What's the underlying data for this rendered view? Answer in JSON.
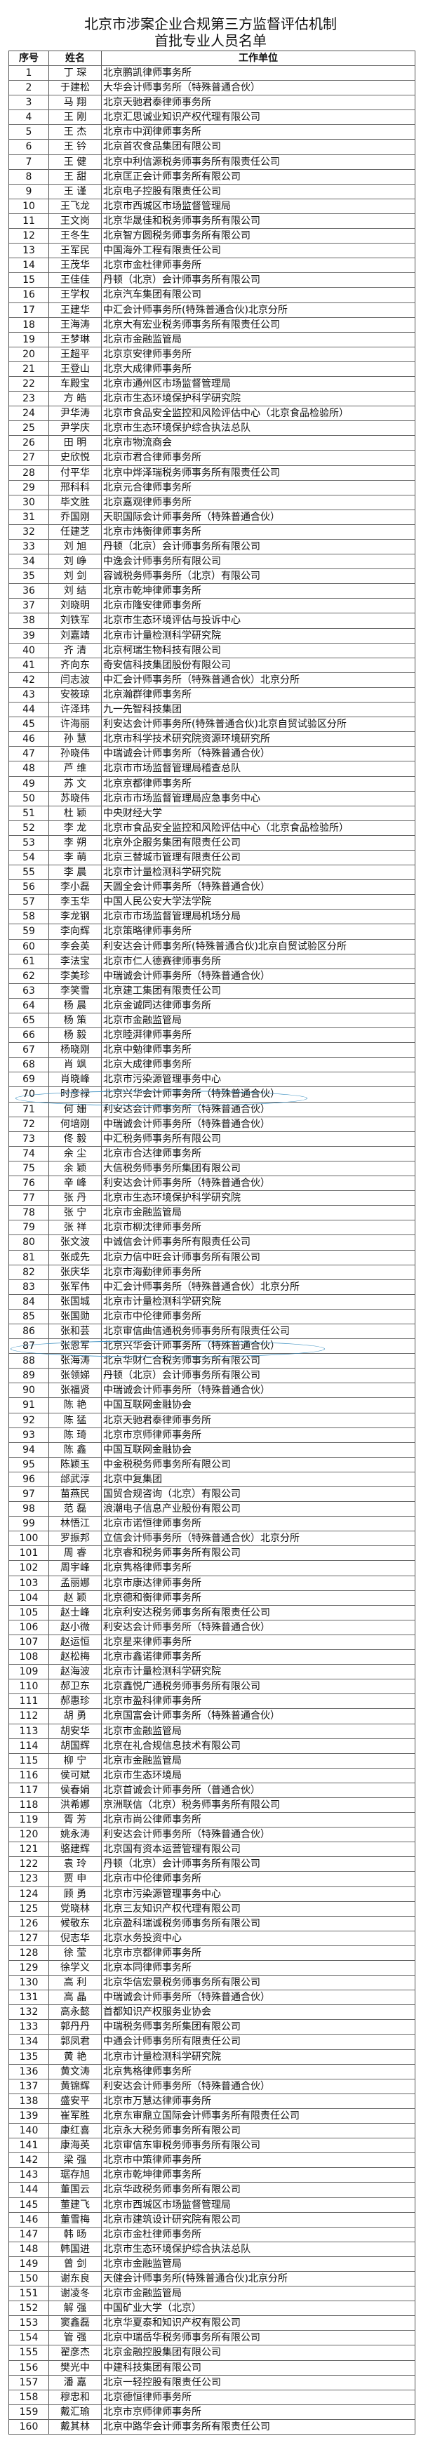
{
  "title_line1": "北京市涉案企业合规第三方监督评估机制",
  "title_line2": "首批专业人员名单",
  "headers": [
    "序号",
    "姓名",
    "工作单位"
  ],
  "highlight_color": "#3a8fc0",
  "highlighted_rows": [
    70,
    87
  ],
  "rows": [
    [
      "1",
      "丁 琛",
      "北京鹏凯律师事务所"
    ],
    [
      "2",
      "于建松",
      "大华会计师事务所（特殊普通合伙）"
    ],
    [
      "3",
      "马 翔",
      "北京天驰君泰律师事务所"
    ],
    [
      "4",
      "王 刚",
      "北京汇思诚业知识产权代理有限公司"
    ],
    [
      "5",
      "王 杰",
      "北京市中润律师事务所"
    ],
    [
      "6",
      "王 钤",
      "北京首农食品集团有限公司"
    ],
    [
      "7",
      "王 健",
      "北京中利信源税务师事务所有限责任公司"
    ],
    [
      "8",
      "王 甜",
      "北京匡正会计师事务所有限公司"
    ],
    [
      "9",
      "王 谨",
      "北京电子控股有限责任公司"
    ],
    [
      "10",
      "王飞龙",
      "北京市西城区市场监督管理局"
    ],
    [
      "11",
      "王文岗",
      "北京华晟佳和税务师事务所有限公司"
    ],
    [
      "12",
      "王冬生",
      "北京智方圆税务师事务所有限公司"
    ],
    [
      "13",
      "王军民",
      "中国海外工程有限责任公司"
    ],
    [
      "14",
      "王茂华",
      "北京市金杜律师事务所"
    ],
    [
      "15",
      "王佳佳",
      "丹顿（北京）会计师事务所有限公司"
    ],
    [
      "16",
      "王学权",
      "北京汽车集团有限公司"
    ],
    [
      "17",
      "王建华",
      "中汇会计师事务所(特殊普通合伙)北京分所"
    ],
    [
      "18",
      "王海涛",
      "北京大有宏业税务师事务所有限责任公司"
    ],
    [
      "19",
      "王梦琳",
      "北京市金融监管局"
    ],
    [
      "20",
      "王超平",
      "北京京安律师事务所"
    ],
    [
      "21",
      "王登山",
      "北京大成律师事务所"
    ],
    [
      "22",
      "车殿宝",
      "北京市通州区市场监督管理局"
    ],
    [
      "23",
      "方 皓",
      "北京市生态环境保护科学研究院"
    ],
    [
      "24",
      "尹华涛",
      "北京市食品安全监控和风险评估中心（北京食品检验所）"
    ],
    [
      "25",
      "尹学庆",
      "北京市生态环境保护综合执法总队"
    ],
    [
      "26",
      "田 明",
      "北京市物流商会"
    ],
    [
      "27",
      "史欣悦",
      "北京市君合律师事务所"
    ],
    [
      "28",
      "付平华",
      "北京中烨泽瑞税务师事务所有限责任公司"
    ],
    [
      "29",
      "邢科科",
      "北京元合律师事务所"
    ],
    [
      "30",
      "毕文胜",
      "北京嘉观律师事务所"
    ],
    [
      "31",
      "乔国刚",
      "天职国际会计师事务所（特殊普通合伙）"
    ],
    [
      "32",
      "任建芝",
      "北京市炜衡律师事务所"
    ],
    [
      "33",
      "刘 旭",
      "丹顿（北京）会计师事务所有限公司"
    ],
    [
      "34",
      "刘 峥",
      "中逸会计师事务所有限公司"
    ],
    [
      "35",
      "刘 剑",
      "容诚税务师事务所（北京）有限公司"
    ],
    [
      "36",
      "刘 结",
      "北京市乾坤律师事务所"
    ],
    [
      "37",
      "刘晓明",
      "北京市隆安律师事务所"
    ],
    [
      "38",
      "刘铁军",
      "北京市生态环境评估与投诉中心"
    ],
    [
      "39",
      "刘嘉靖",
      "北京市计量检测科学研究院"
    ],
    [
      "40",
      "齐 清",
      "北京柯瑞生物科技有限公司"
    ],
    [
      "41",
      "齐向东",
      "奇安信科技集团股份有限公司"
    ],
    [
      "42",
      "闫志波",
      "中汇会计师事务所（特殊普通合伙）北京分所"
    ],
    [
      "43",
      "安筱琼",
      "北京瀚群律师事务所"
    ],
    [
      "44",
      "许泽玮",
      "九一先智科技集团"
    ],
    [
      "45",
      "许海丽",
      "利安达会计师事务所(特殊普通合伙)北京自贸试验区分所"
    ],
    [
      "46",
      "孙 慧",
      "北京市科学技术研究院资源环境研究所"
    ],
    [
      "47",
      "孙晓伟",
      "中瑞诚会计师事务所（特殊普通合伙）"
    ],
    [
      "48",
      "芦 维",
      "北京市市场监督管理局稽查总队"
    ],
    [
      "49",
      "苏 文",
      "北京京都律师事务所"
    ],
    [
      "50",
      "苏晓伟",
      "北京市市场监督管理局应急事务中心"
    ],
    [
      "51",
      "杜 颖",
      "中央财经大学"
    ],
    [
      "52",
      "李 龙",
      "北京市食品安全监控和风险评估中心（北京食品检验所）"
    ],
    [
      "53",
      "李 朔",
      "北京外企服务集团有限责任公司"
    ],
    [
      "54",
      "李 萌",
      "北京三替城市管理有限责任公司"
    ],
    [
      "55",
      "李 晨",
      "北京市计量检测科学研究院"
    ],
    [
      "56",
      "李小磊",
      "天圆全会计师事务所（特殊普通合伙）"
    ],
    [
      "57",
      "李玉华",
      "中国人民公安大学法学院"
    ],
    [
      "58",
      "李龙钢",
      "北京市市场监督管理局机场分局"
    ],
    [
      "59",
      "李向辉",
      "北京策略律师事务所"
    ],
    [
      "60",
      "李会英",
      "利安达会计师事务所(特殊普通合伙)北京自贸试验区分所"
    ],
    [
      "61",
      "李法宝",
      "北京市仁人德赛律师事务所"
    ],
    [
      "62",
      "李美珍",
      "中瑞诚会计师事务所（特殊普通合伙）"
    ],
    [
      "63",
      "李笑雪",
      "北京建工集团有限责任公司"
    ],
    [
      "64",
      "杨 晨",
      "北京金诚同达律师事务所"
    ],
    [
      "65",
      "杨 策",
      "北京市金融监管局"
    ],
    [
      "66",
      "杨 毅",
      "北京睦湃律师事务所"
    ],
    [
      "67",
      "杨晓刚",
      "北京中勉律师事务所"
    ],
    [
      "68",
      "肖 飒",
      "北京大成律师事务所"
    ],
    [
      "69",
      "肖晓峰",
      "北京市污染源管理事务中心"
    ],
    [
      "70",
      "时彦禄",
      "北京兴华会计师事务所（特殊普通合伙）"
    ],
    [
      "71",
      "何 姗",
      "利安达会计师事务所（特殊普通合伙）"
    ],
    [
      "72",
      "何培刚",
      "中瑞诚会计师事务所（特殊普通合伙）"
    ],
    [
      "73",
      "佟 毅",
      "中汇税务师事务所有限公司"
    ],
    [
      "74",
      "余 尘",
      "北京市合达律师事务所"
    ],
    [
      "75",
      "余 颖",
      "大信税务师事务所集团有限公司"
    ],
    [
      "76",
      "辛 峰",
      "利安达会计师事务所（特殊普通合伙）"
    ],
    [
      "77",
      "张 丹",
      "北京市生态环境保护科学研究院"
    ],
    [
      "78",
      "张 宁",
      "北京市金融监管局"
    ],
    [
      "79",
      "张 祥",
      "北京市柳沈律师事务所"
    ],
    [
      "80",
      "张文波",
      "中诚信会计师事务所有限责任公司"
    ],
    [
      "81",
      "张成先",
      "北京力信中旺会计师事务所有限公司"
    ],
    [
      "82",
      "张庆华",
      "北京市海勤律师事务所"
    ],
    [
      "83",
      "张军伟",
      "中汇会计师事务所（特殊普通合伙）北京分所"
    ],
    [
      "84",
      "张国城",
      "北京市计量检测科学研究院"
    ],
    [
      "85",
      "张国勋",
      "北京市中伦律师事务所"
    ],
    [
      "86",
      "张和芸",
      "北京审信曲信通税务师事务所有限责任公司"
    ],
    [
      "87",
      "张恩军",
      "北京兴华会计师事务所（特殊普通合伙）"
    ],
    [
      "88",
      "张海涛",
      "北京华财仁合税务师事务所有限公司"
    ],
    [
      "89",
      "张领娣",
      "丹顿（北京）会计师事务所有限公司"
    ],
    [
      "90",
      "张福贤",
      "中瑞诚会计师事务所（特殊普通合伙）"
    ],
    [
      "91",
      "陈 艳",
      "中国互联网金融协会"
    ],
    [
      "92",
      "陈 猛",
      "北京天驰君泰律师事务所"
    ],
    [
      "93",
      "陈 琦",
      "北京市京师律师事务所"
    ],
    [
      "94",
      "陈 鑫",
      "中国互联网金融协会"
    ],
    [
      "95",
      "陈颖玉",
      "中金税税务师事务所有限公司"
    ],
    [
      "96",
      "邰武淳",
      "北京中复集团"
    ],
    [
      "97",
      "苗燕民",
      "国贸合规咨询（北京）有限公司"
    ],
    [
      "98",
      "范 磊",
      "浪潮电子信息产业股份有限公司"
    ],
    [
      "99",
      "林悟江",
      "北京市诺恒律师事务所"
    ],
    [
      "100",
      "罗振邦",
      "立信会计师事务所（特殊普通合伙）北京分所"
    ],
    [
      "101",
      "周 睿",
      "北京睿和税务师事务所有限公司"
    ],
    [
      "102",
      "周宇峰",
      "北京隽格律师事务所"
    ],
    [
      "103",
      "孟丽娜",
      "北京市康达律师事务所"
    ],
    [
      "104",
      "赵 颖",
      "北京德和衡律师事务所"
    ],
    [
      "105",
      "赵士峰",
      "北京利安达税务师事务所有限责任公司"
    ],
    [
      "106",
      "赵小微",
      "利安达会计师事务所（特殊普通合伙）"
    ],
    [
      "107",
      "赵运恒",
      "北京星来律师事务所"
    ],
    [
      "108",
      "赵松梅",
      "北京市鑫诺律师事务所"
    ],
    [
      "109",
      "赵海波",
      "北京市计量检测科学研究院"
    ],
    [
      "110",
      "郝卫东",
      "北京鑫悦广通税务师事务所有限公司"
    ],
    [
      "111",
      "郝惠珍",
      "北京市盈科律师事务所"
    ],
    [
      "112",
      "胡 勇",
      "北京国富会计师事务所（特殊普通合伙）"
    ],
    [
      "113",
      "胡安华",
      "北京市金融监管局"
    ],
    [
      "114",
      "胡国辉",
      "北京在礼合规信息技术有限公司"
    ],
    [
      "115",
      "柳 宁",
      "北京市金融监管局"
    ],
    [
      "116",
      "侯可斌",
      "北京市生态环境局"
    ],
    [
      "117",
      "侯春娟",
      "北京首诚会计师事务所（普通合伙）"
    ],
    [
      "118",
      "洪希娜",
      "京洲联信（北京）税务师事务所有限公司"
    ],
    [
      "119",
      "胥 芳",
      "北京市尚公律师事务所"
    ],
    [
      "120",
      "姚永涛",
      "利安达会计师事务所（特殊普通合伙）"
    ],
    [
      "121",
      "骆建辉",
      "北京国有资本运营管理有限公司"
    ],
    [
      "122",
      "袁 玲",
      "丹顿（北京）会计师事务所有限公司"
    ],
    [
      "123",
      "贾 申",
      "北京市中伦律师事务所"
    ],
    [
      "124",
      "顾 勇",
      "北京市污染源管理事务中心"
    ],
    [
      "125",
      "党晓林",
      "北京三友知识产权代理有限公司"
    ],
    [
      "126",
      "候敬东",
      "北京盈科瑞诚税务师事务所有限公司"
    ],
    [
      "127",
      "倪志华",
      "北京水务投资中心"
    ],
    [
      "128",
      "徐 莹",
      "北京市京都律师事务所"
    ],
    [
      "129",
      "徐学义",
      "北京本同律师事务所"
    ],
    [
      "130",
      "高 利",
      "北京华信宏景税务师事务所有限公司"
    ],
    [
      "131",
      "高 晶",
      "中瑞诚会计师事务所（特殊普通合伙）"
    ],
    [
      "132",
      "高永懿",
      "首都知识产权服务业协会"
    ],
    [
      "133",
      "郭丹丹",
      "中瑞税务师事务所集团有限公司"
    ],
    [
      "134",
      "郭凤君",
      "中通会计师事务所有限责任公司"
    ],
    [
      "135",
      "黄 艳",
      "北京市计量检测科学研究院"
    ],
    [
      "136",
      "黄文涛",
      "北京隽格律师事务所"
    ],
    [
      "137",
      "黄锦辉",
      "利安达会计师事务所（特殊普通合伙）"
    ],
    [
      "138",
      "盛安平",
      "北京市万慧达律师事务所"
    ],
    [
      "139",
      "崔军胜",
      "北京东审鼎立国际会计师事务所有限责任公司"
    ],
    [
      "140",
      "康红喜",
      "北京永大税务师事务所有限公司"
    ],
    [
      "141",
      "康海英",
      "北京审信东审税务师事务所有限公司"
    ],
    [
      "142",
      "梁 强",
      "北京市中策律师事务所"
    ],
    [
      "143",
      "琚存旭",
      "北京市乾坤律师事务所"
    ],
    [
      "144",
      "董国云",
      "北京华政税务师事务所有限公司"
    ],
    [
      "145",
      "董建飞",
      "北京市西城区市场监督管理局"
    ],
    [
      "146",
      "董雪梅",
      "北京市建筑设计研究院有限公司"
    ],
    [
      "147",
      "韩 旸",
      "北京市金杜律师事务所"
    ],
    [
      "148",
      "韩国进",
      "北京市生态环境保护综合执法总队"
    ],
    [
      "149",
      "曾 剑",
      "北京市金融监管局"
    ],
    [
      "150",
      "谢东良",
      "天健会计师事务所(特殊普通合伙)北京分所"
    ],
    [
      "151",
      "谢凌冬",
      "北京市金融监管局"
    ],
    [
      "152",
      "解 强",
      "中国矿业大学（北京）"
    ],
    [
      "153",
      "窦鑫磊",
      "北京华夏泰和知识产权有限公司"
    ],
    [
      "154",
      "管 强",
      "北京中瑞岳华税务师事务所有限公司"
    ],
    [
      "155",
      "翟彦杰",
      "北京金融控股集团有限公司"
    ],
    [
      "156",
      "樊光中",
      "中建科技集团有限公司"
    ],
    [
      "157",
      "潘 嘉",
      "北京一轻控股有限责任公司"
    ],
    [
      "158",
      "穆忠和",
      "北京德恒律师事务所"
    ],
    [
      "159",
      "戴汇瑜",
      "北京市京师律师事务所"
    ],
    [
      "160",
      "戴其林",
      "北京中路华会计师事务所有限责任公司"
    ]
  ]
}
